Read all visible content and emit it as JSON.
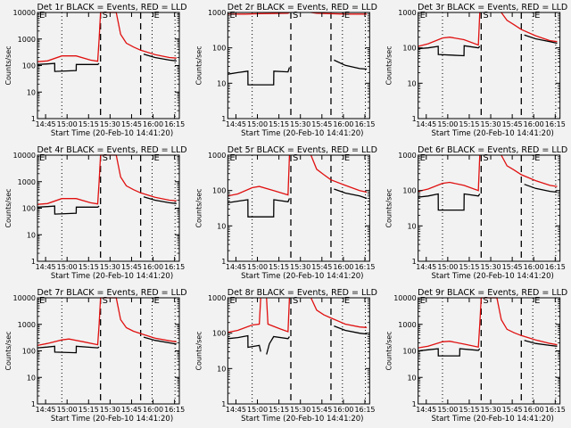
{
  "figure": {
    "xlabel": "Start Time (20-Feb-10 14:41:20)",
    "ylabel": "Counts/sec",
    "legend_text": "BLACK = Events, RED = LLD",
    "colors": {
      "events": "#000000",
      "lld": "#e01010",
      "background": "#f2f2f2"
    },
    "marker_labels": {
      "start": "S",
      "end": "E"
    }
  },
  "chart_data": [
    {
      "type": "line",
      "title": "Det 1r BLACK = Events, RED = LLD",
      "detector": "1r",
      "xlabel": "Start Time (20-Feb-10 14:41:20)",
      "ylabel": "Counts/sec",
      "yscale": "log",
      "ylim": [
        1,
        10000
      ],
      "yticks": [
        "1",
        "10",
        "100",
        "1000",
        "10000"
      ],
      "xticks": [
        "14:45",
        "15:00",
        "15:15",
        "15:30",
        "15:45",
        "16:00",
        "16:15"
      ],
      "xlim_min": [
        -2,
        97
      ],
      "dotted_lines_min": [
        15,
        78,
        94
      ],
      "dashed_lines_min": [
        42,
        70
      ],
      "series": [
        {
          "name": "LLD",
          "color": "red",
          "x": [
            -2,
            5,
            15,
            25,
            35,
            40,
            41,
            42,
            44,
            50,
            53,
            56,
            60,
            65,
            70,
            80,
            90,
            95
          ],
          "y": [
            140,
            150,
            230,
            230,
            160,
            145,
            1000,
            10000,
            10000,
            10000,
            10000,
            1500,
            700,
            500,
            380,
            260,
            200,
            190
          ]
        },
        {
          "name": "Events",
          "color": "black",
          "x": [
            -2,
            5,
            10,
            10.1,
            25,
            25.1,
            40,
            41,
            41.1,
            72,
            72.1,
            80,
            90,
            95
          ],
          "y": [
            110,
            115,
            120,
            60,
            65,
            110,
            110,
            120,
            null,
            null,
            270,
            200,
            160,
            150
          ]
        }
      ]
    },
    {
      "type": "line",
      "title": "Det 2r BLACK = Events, RED = LLD",
      "detector": "2r",
      "xlabel": "Start Time (20-Feb-10 14:41:20)",
      "ylabel": "Counts/sec",
      "yscale": "log",
      "ylim": [
        1,
        1000
      ],
      "yticks": [
        "1",
        "10",
        "100",
        "1000"
      ],
      "xticks": [
        "14:45",
        "15:00",
        "15:15",
        "15:30",
        "15:45",
        "16:00",
        "16:15"
      ],
      "xlim_min": [
        -2,
        97
      ],
      "dotted_lines_min": [
        15,
        78,
        94
      ],
      "dashed_lines_min": [
        42,
        70
      ],
      "series": [
        {
          "name": "LLD",
          "color": "red",
          "x": [
            -2,
            10,
            20,
            40,
            41,
            41.1,
            56,
            60,
            70,
            80,
            95
          ],
          "y": [
            900,
            900,
            920,
            950,
            1000,
            null,
            1000,
            950,
            920,
            900,
            900
          ]
        },
        {
          "name": "Events",
          "color": "black",
          "x": [
            -2,
            5,
            12,
            12.1,
            30,
            30.1,
            40,
            41,
            41.1,
            72,
            72.1,
            80,
            90,
            95
          ],
          "y": [
            18,
            20,
            22,
            9,
            9,
            22,
            21,
            28,
            null,
            null,
            45,
            32,
            26,
            25
          ]
        }
      ]
    },
    {
      "type": "line",
      "title": "Det 3r BLACK = Events, RED = LLD",
      "detector": "3r",
      "xlabel": "Start Time (20-Feb-10 14:41:20)",
      "ylabel": "Counts/sec",
      "yscale": "log",
      "ylim": [
        1,
        1000
      ],
      "yticks": [
        "1",
        "10",
        "100",
        "1000"
      ],
      "xticks": [
        "14:45",
        "15:00",
        "15:15",
        "15:30",
        "15:45",
        "16:00",
        "16:15"
      ],
      "xlim_min": [
        -2,
        97
      ],
      "dotted_lines_min": [
        15,
        78,
        94
      ],
      "dashed_lines_min": [
        42,
        70
      ],
      "series": [
        {
          "name": "LLD",
          "color": "red",
          "x": [
            -2,
            5,
            15,
            20,
            30,
            40,
            41,
            41.1,
            56,
            60,
            65,
            70,
            80,
            90,
            95
          ],
          "y": [
            110,
            130,
            190,
            200,
            170,
            120,
            1000,
            null,
            1000,
            600,
            450,
            330,
            220,
            160,
            150
          ]
        },
        {
          "name": "Events",
          "color": "black",
          "x": [
            -2,
            5,
            12,
            12.1,
            30,
            30.1,
            40,
            41,
            41.1,
            72,
            72.1,
            80,
            90,
            95
          ],
          "y": [
            95,
            100,
            110,
            65,
            60,
            115,
            100,
            110,
            null,
            null,
            230,
            180,
            150,
            135
          ]
        }
      ]
    },
    {
      "type": "line",
      "title": "Det 4r BLACK = Events, RED = LLD",
      "detector": "4r",
      "xlabel": "Start Time (20-Feb-10 14:41:20)",
      "ylabel": "Counts/sec",
      "yscale": "log",
      "ylim": [
        1,
        10000
      ],
      "yticks": [
        "1",
        "10",
        "100",
        "1000",
        "10000"
      ],
      "xticks": [
        "14:45",
        "15:00",
        "15:15",
        "15:30",
        "15:45",
        "16:00",
        "16:15"
      ],
      "xlim_min": [
        -2,
        97
      ],
      "dotted_lines_min": [
        15,
        78,
        94
      ],
      "dashed_lines_min": [
        42,
        70
      ],
      "series": [
        {
          "name": "LLD",
          "color": "red",
          "x": [
            -2,
            5,
            15,
            25,
            35,
            40,
            41,
            42,
            44,
            50,
            53,
            56,
            60,
            65,
            70,
            80,
            90,
            95
          ],
          "y": [
            140,
            150,
            230,
            230,
            160,
            145,
            1000,
            10000,
            10000,
            10000,
            10000,
            1500,
            700,
            500,
            380,
            260,
            200,
            190
          ]
        },
        {
          "name": "Events",
          "color": "black",
          "x": [
            -2,
            5,
            10,
            10.1,
            25,
            25.1,
            40,
            41,
            41.1,
            72,
            72.1,
            80,
            90,
            95
          ],
          "y": [
            110,
            115,
            120,
            60,
            65,
            110,
            110,
            120,
            null,
            null,
            270,
            200,
            160,
            150
          ]
        }
      ]
    },
    {
      "type": "line",
      "title": "Det 5r BLACK = Events, RED = LLD",
      "detector": "5r",
      "xlabel": "Start Time (20-Feb-10 14:41:20)",
      "ylabel": "Counts/sec",
      "yscale": "log",
      "ylim": [
        1,
        1000
      ],
      "yticks": [
        "1",
        "10",
        "100",
        "1000"
      ],
      "xticks": [
        "14:45",
        "15:00",
        "15:15",
        "15:30",
        "15:45",
        "16:00",
        "16:15"
      ],
      "xlim_min": [
        -2,
        97
      ],
      "dotted_lines_min": [
        15,
        78,
        94
      ],
      "dashed_lines_min": [
        42,
        70
      ],
      "series": [
        {
          "name": "LLD",
          "color": "red",
          "x": [
            -2,
            5,
            15,
            20,
            30,
            40,
            41,
            41.1,
            56,
            60,
            65,
            70,
            80,
            90,
            95
          ],
          "y": [
            70,
            80,
            120,
            130,
            100,
            75,
            1000,
            null,
            1000,
            400,
            280,
            200,
            140,
            100,
            90
          ]
        },
        {
          "name": "Events",
          "color": "black",
          "x": [
            -2,
            5,
            12,
            12.1,
            30,
            30.1,
            40,
            41,
            41.1,
            72,
            72.1,
            80,
            90,
            95
          ],
          "y": [
            45,
            50,
            55,
            18,
            18,
            55,
            48,
            60,
            null,
            null,
            110,
            85,
            70,
            60
          ]
        }
      ]
    },
    {
      "type": "line",
      "title": "Det 6r BLACK = Events, RED = LLD",
      "detector": "6r",
      "xlabel": "Start Time (20-Feb-10 14:41:20)",
      "ylabel": "Counts/sec",
      "yscale": "log",
      "ylim": [
        1,
        1000
      ],
      "yticks": [
        "1",
        "10",
        "100",
        "1000"
      ],
      "xticks": [
        "14:45",
        "15:00",
        "15:15",
        "15:30",
        "15:45",
        "16:00",
        "16:15"
      ],
      "xlim_min": [
        -2,
        97
      ],
      "dotted_lines_min": [
        15,
        78,
        94
      ],
      "dashed_lines_min": [
        42,
        70
      ],
      "series": [
        {
          "name": "LLD",
          "color": "red",
          "x": [
            -2,
            5,
            15,
            20,
            30,
            40,
            41,
            41.1,
            56,
            60,
            65,
            70,
            80,
            90,
            95
          ],
          "y": [
            95,
            110,
            160,
            170,
            140,
            100,
            1000,
            null,
            1000,
            500,
            380,
            280,
            190,
            140,
            130
          ]
        },
        {
          "name": "Events",
          "color": "black",
          "x": [
            -2,
            5,
            12,
            12.1,
            30,
            30.1,
            40,
            41,
            41.1,
            72,
            72.1,
            80,
            90,
            95
          ],
          "y": [
            65,
            70,
            80,
            28,
            28,
            80,
            70,
            80,
            null,
            null,
            150,
            115,
            95,
            90
          ]
        }
      ]
    },
    {
      "type": "line",
      "title": "Det 7r BLACK = Events, RED = LLD",
      "detector": "7r",
      "xlabel": "Start Time (20-Feb-10 14:41:20)",
      "ylabel": "Counts/sec",
      "yscale": "log",
      "ylim": [
        1,
        10000
      ],
      "yticks": [
        "1",
        "10",
        "100",
        "1000",
        "10000"
      ],
      "xticks": [
        "14:45",
        "15:00",
        "15:15",
        "15:30",
        "15:45",
        "16:00",
        "16:15"
      ],
      "xlim_min": [
        -2,
        97
      ],
      "dotted_lines_min": [
        15,
        78,
        94
      ],
      "dashed_lines_min": [
        42,
        70
      ],
      "series": [
        {
          "name": "LLD",
          "color": "red",
          "x": [
            -2,
            5,
            15,
            20,
            30,
            40,
            41,
            42,
            44,
            50,
            53,
            56,
            60,
            65,
            70,
            80,
            90,
            95
          ],
          "y": [
            160,
            190,
            260,
            280,
            220,
            170,
            1000,
            10000,
            10000,
            10000,
            10000,
            1500,
            750,
            550,
            450,
            300,
            240,
            220
          ]
        },
        {
          "name": "Events",
          "color": "black",
          "x": [
            -2,
            5,
            10,
            10.1,
            25,
            25.1,
            40,
            41,
            41.1,
            72,
            72.1,
            80,
            90,
            95
          ],
          "y": [
            130,
            140,
            150,
            90,
            85,
            150,
            130,
            140,
            null,
            null,
            330,
            250,
            200,
            180
          ]
        }
      ]
    },
    {
      "type": "line",
      "title": "Det 8r BLACK = Events, RED = LLD",
      "detector": "8r",
      "xlabel": "Start Time (20-Feb-10 14:41:20)",
      "ylabel": "Counts/sec",
      "yscale": "log",
      "ylim": [
        1,
        1000
      ],
      "yticks": [
        "1",
        "10",
        "100",
        "1000"
      ],
      "xticks": [
        "14:45",
        "15:00",
        "15:15",
        "15:30",
        "15:45",
        "16:00",
        "16:15"
      ],
      "xlim_min": [
        -2,
        97
      ],
      "dotted_lines_min": [
        15,
        78,
        94
      ],
      "dashed_lines_min": [
        42,
        70
      ],
      "series": [
        {
          "name": "LLD",
          "color": "red",
          "x": [
            -2,
            5,
            15,
            20,
            21,
            21.1,
            25,
            26,
            35,
            40,
            41,
            41.1,
            56,
            60,
            65,
            70,
            80,
            90,
            95
          ],
          "y": [
            105,
            120,
            170,
            180,
            1000,
            null,
            1000,
            180,
            130,
            110,
            1000,
            null,
            1000,
            450,
            330,
            270,
            180,
            150,
            145
          ]
        },
        {
          "name": "Events",
          "color": "black",
          "x": [
            -2,
            5,
            12,
            12.1,
            20,
            21,
            21.1,
            25,
            27,
            30,
            40,
            41,
            41.1,
            72,
            72.1,
            80,
            90,
            95
          ],
          "y": [
            70,
            75,
            85,
            40,
            45,
            30,
            null,
            25,
            50,
            80,
            70,
            80,
            null,
            null,
            160,
            120,
            100,
            95
          ]
        }
      ]
    },
    {
      "type": "line",
      "title": "Det 9r BLACK = Events, RED = LLD",
      "detector": "9r",
      "xlabel": "Start Time (20-Feb-10 14:41:20)",
      "ylabel": "Counts/sec",
      "yscale": "log",
      "ylim": [
        1,
        10000
      ],
      "yticks": [
        "1",
        "10",
        "100",
        "1000",
        "10000"
      ],
      "xticks": [
        "14:45",
        "15:00",
        "15:15",
        "15:30",
        "15:45",
        "16:00",
        "16:15"
      ],
      "xlim_min": [
        -2,
        97
      ],
      "dotted_lines_min": [
        15,
        78,
        94
      ],
      "dashed_lines_min": [
        42,
        70
      ],
      "series": [
        {
          "name": "LLD",
          "color": "red",
          "x": [
            -2,
            5,
            15,
            20,
            30,
            40,
            41,
            42,
            44,
            50,
            53,
            56,
            60,
            65,
            70,
            80,
            90,
            95
          ],
          "y": [
            130,
            150,
            220,
            230,
            180,
            140,
            1000,
            10000,
            10000,
            10000,
            10000,
            1500,
            650,
            480,
            380,
            260,
            190,
            170
          ]
        },
        {
          "name": "Events",
          "color": "black",
          "x": [
            -2,
            5,
            12,
            12.1,
            27,
            27.1,
            40,
            41,
            41.1,
            72,
            72.1,
            80,
            90,
            95
          ],
          "y": [
            100,
            110,
            120,
            65,
            65,
            120,
            105,
            120,
            null,
            null,
            250,
            190,
            160,
            150
          ]
        }
      ]
    }
  ]
}
